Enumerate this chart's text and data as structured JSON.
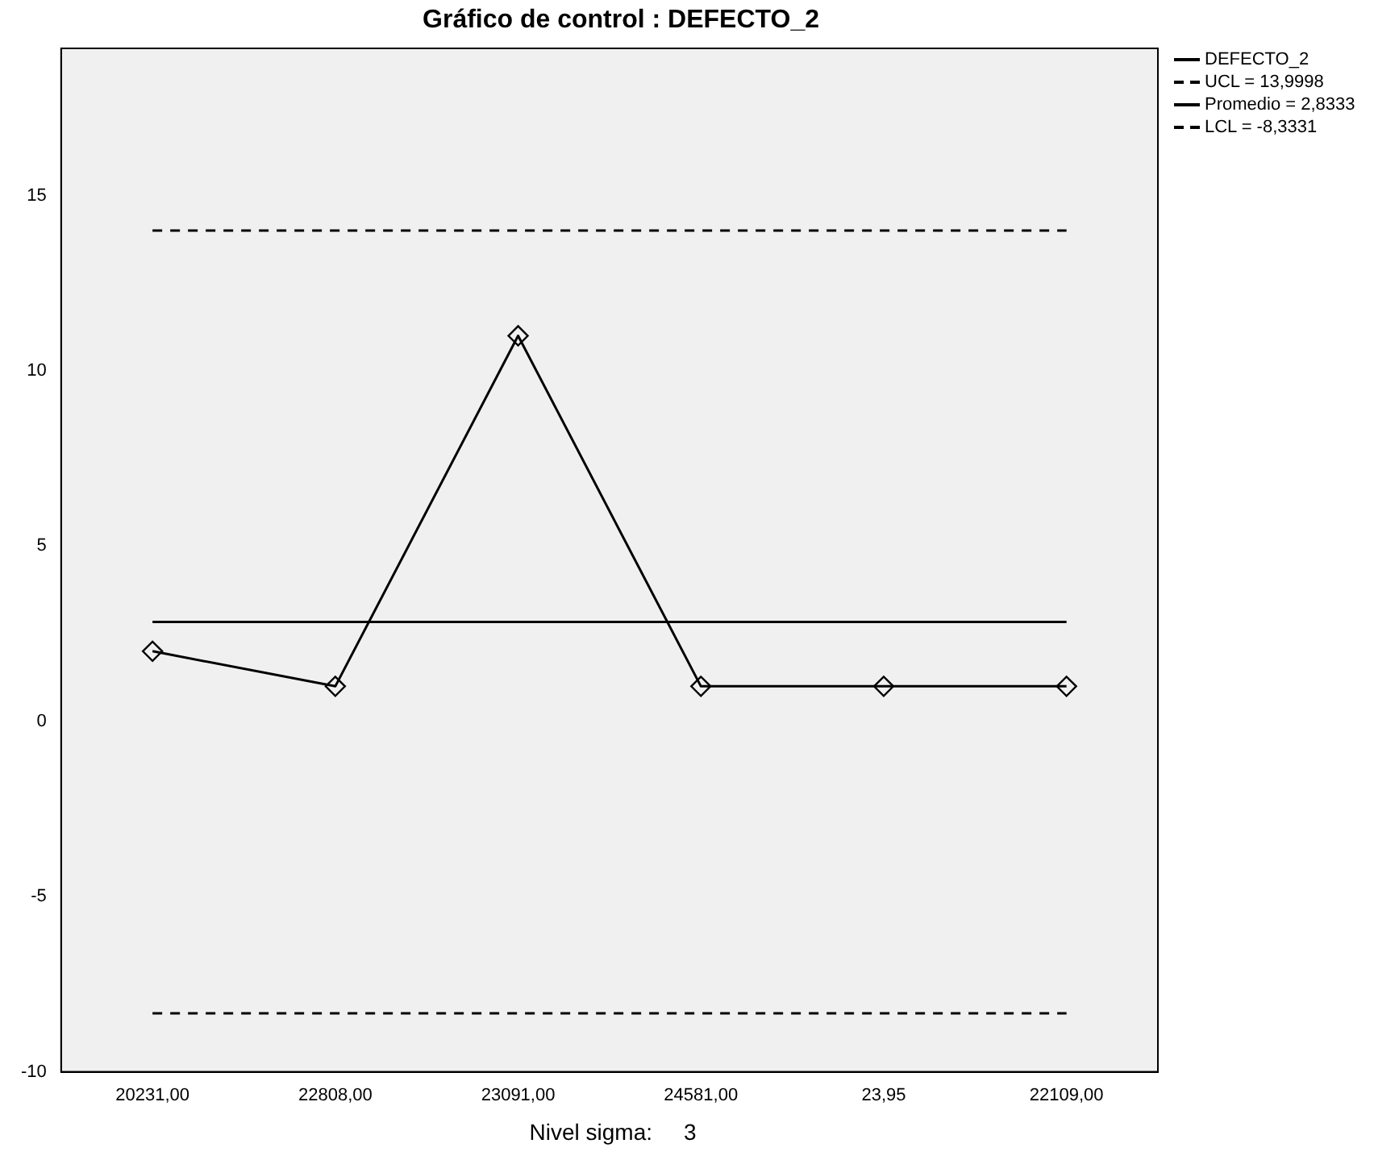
{
  "chart_data": {
    "type": "line",
    "title": "Gráfico de control : DEFECTO_2",
    "categories": [
      "20231,00",
      "22808,00",
      "23091,00",
      "24581,00",
      "23,95",
      "22109,00"
    ],
    "series": [
      {
        "name": "DEFECTO_2",
        "color": "#000000",
        "values": [
          2,
          1,
          11,
          1,
          1,
          1
        ]
      }
    ],
    "ylim": [
      -10,
      19.2
    ],
    "yticks": [
      -10,
      -5,
      0,
      5,
      10,
      15
    ],
    "grid": false,
    "marker": "diamond",
    "line_style": "solid",
    "legend": "top right",
    "ref_lines": [
      {
        "axis": "y",
        "value": 13.9998,
        "label": "UCL = 13,9998",
        "color": "#000000",
        "line_style": "dashed"
      },
      {
        "axis": "y",
        "value": 2.8333,
        "label": "Promedio = 2,8333",
        "color": "#000000",
        "line_style": "solid"
      },
      {
        "axis": "y",
        "value": -8.3331,
        "label": "LCL = -8,3331",
        "color": "#000000",
        "line_style": "dashed"
      }
    ],
    "annotations": [
      "Nivel sigma:     3"
    ]
  }
}
